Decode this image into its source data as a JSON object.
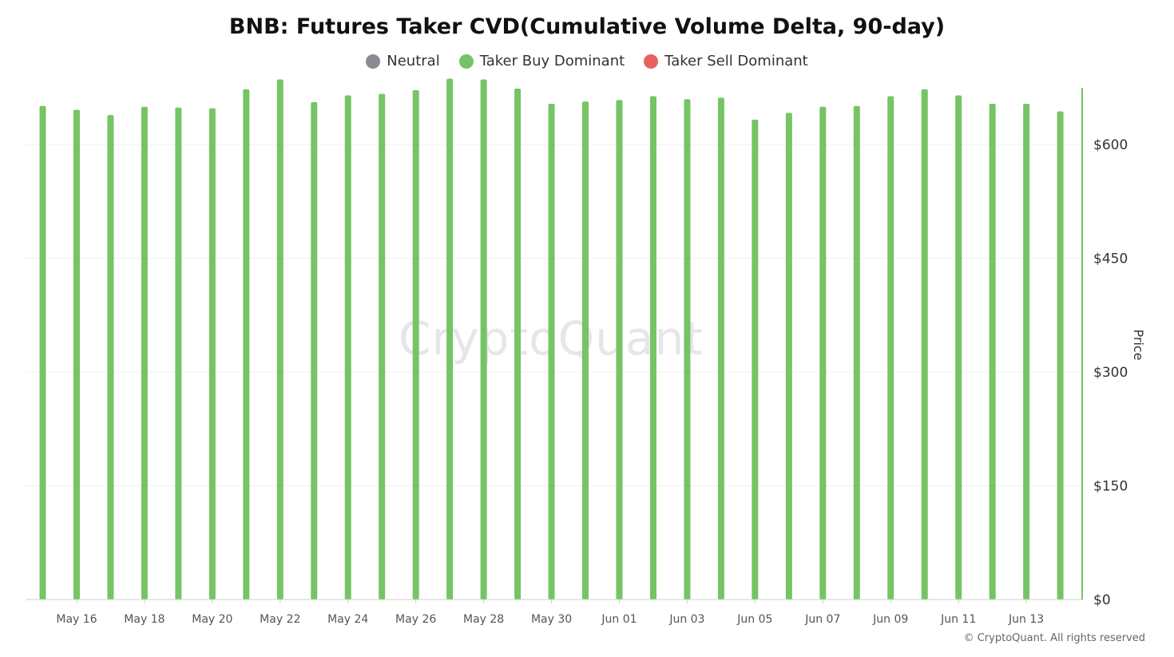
{
  "title": "BNB: Futures Taker CVD(Cumulative Volume Delta, 90-day)",
  "legend": [
    {
      "label": "Neutral",
      "color": "#8a8a94"
    },
    {
      "label": "Taker Buy Dominant",
      "color": "#75c465"
    },
    {
      "label": "Taker Sell Dominant",
      "color": "#e8615f"
    }
  ],
  "watermark": "CryptoQuant",
  "copyright": "© CryptoQuant. All rights reserved",
  "chart_data": {
    "type": "bar",
    "ylabel": "Price",
    "ylim": [
      0,
      675
    ],
    "yticks": [
      0,
      150,
      300,
      450,
      600
    ],
    "ytick_labels": [
      "$0",
      "$150",
      "$300",
      "$450",
      "$600"
    ],
    "categories": [
      "May 15",
      "May 16",
      "May 17",
      "May 18",
      "May 19",
      "May 20",
      "May 21",
      "May 22",
      "May 23",
      "May 24",
      "May 25",
      "May 26",
      "May 27",
      "May 28",
      "May 29",
      "May 30",
      "May 31",
      "Jun 01",
      "Jun 02",
      "Jun 03",
      "Jun 04",
      "Jun 05",
      "Jun 06",
      "Jun 07",
      "Jun 08",
      "Jun 09",
      "Jun 10",
      "Jun 11",
      "Jun 12",
      "Jun 13",
      "Jun 14"
    ],
    "xtick_labels": [
      "May 16",
      "May 18",
      "May 20",
      "May 22",
      "May 24",
      "May 26",
      "May 28",
      "May 30",
      "Jun 01",
      "Jun 03",
      "Jun 05",
      "Jun 07",
      "Jun 09",
      "Jun 11",
      "Jun 13"
    ],
    "series": [
      {
        "values": [
          651,
          646,
          639,
          650,
          649,
          648,
          673,
          686,
          656,
          665,
          667,
          672,
          687,
          686,
          674,
          654,
          657,
          659,
          664,
          660,
          662,
          633,
          642,
          650,
          651,
          664,
          673,
          665,
          654,
          654,
          644
        ],
        "color": "#75c465"
      }
    ],
    "grid": true,
    "legend_position": "top"
  }
}
